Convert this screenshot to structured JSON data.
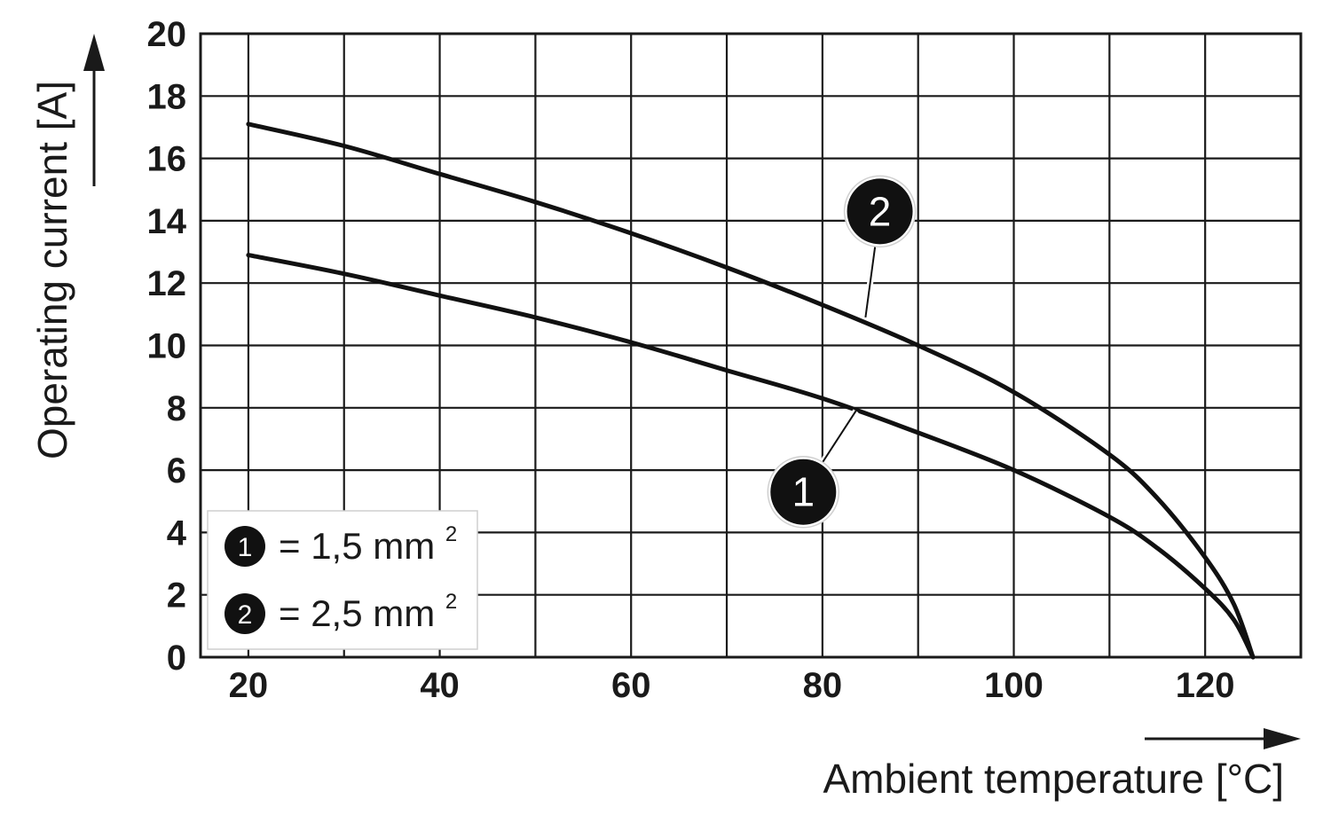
{
  "chart_data": {
    "type": "line",
    "xlabel": "Ambient temperature [°C]",
    "ylabel": "Operating current [A]",
    "xlim": [
      15,
      130
    ],
    "ylim": [
      0,
      20
    ],
    "x_ticks": [
      20,
      40,
      60,
      80,
      100,
      120
    ],
    "x_tick_labels": [
      "20",
      "40",
      "60",
      "80",
      "100",
      "120"
    ],
    "y_ticks": [
      0,
      2,
      4,
      6,
      8,
      10,
      12,
      14,
      16,
      18,
      20
    ],
    "y_tick_labels": [
      "0",
      "2",
      "4",
      "6",
      "8",
      "10",
      "12",
      "14",
      "16",
      "18",
      "20"
    ],
    "x_grid": [
      20,
      30,
      40,
      50,
      60,
      70,
      80,
      90,
      100,
      110,
      120,
      130
    ],
    "y_grid": [
      0,
      2,
      4,
      6,
      8,
      10,
      12,
      14,
      16,
      18,
      20
    ],
    "grid": true,
    "legend_position": "bottom-left",
    "series": [
      {
        "name": "1",
        "x": [
          20,
          30,
          40,
          50,
          60,
          70,
          80,
          90,
          100,
          110,
          115,
          120,
          123,
          125
        ],
        "y": [
          12.9,
          12.3,
          11.6,
          10.9,
          10.1,
          9.2,
          8.3,
          7.2,
          6.0,
          4.5,
          3.5,
          2.2,
          1.2,
          0
        ]
      },
      {
        "name": "2",
        "x": [
          20,
          30,
          40,
          50,
          60,
          70,
          80,
          90,
          100,
          110,
          115,
          120,
          123,
          125
        ],
        "y": [
          17.1,
          16.4,
          15.5,
          14.6,
          13.6,
          12.5,
          11.3,
          10.0,
          8.5,
          6.5,
          5.1,
          3.2,
          1.7,
          0
        ]
      }
    ],
    "annotations": [
      {
        "label": "1",
        "series": "1",
        "point_x": 83.5,
        "point_y": 7.9,
        "badge_x": 78,
        "badge_y": 5.3
      },
      {
        "label": "2",
        "series": "2",
        "point_x": 84.5,
        "point_y": 10.9,
        "badge_x": 86,
        "badge_y": 14.3
      }
    ],
    "legend": [
      {
        "marker": "1",
        "text": "= 1,5 mm",
        "sup": "2"
      },
      {
        "marker": "2",
        "text": "= 2,5 mm",
        "sup": "2"
      }
    ]
  }
}
